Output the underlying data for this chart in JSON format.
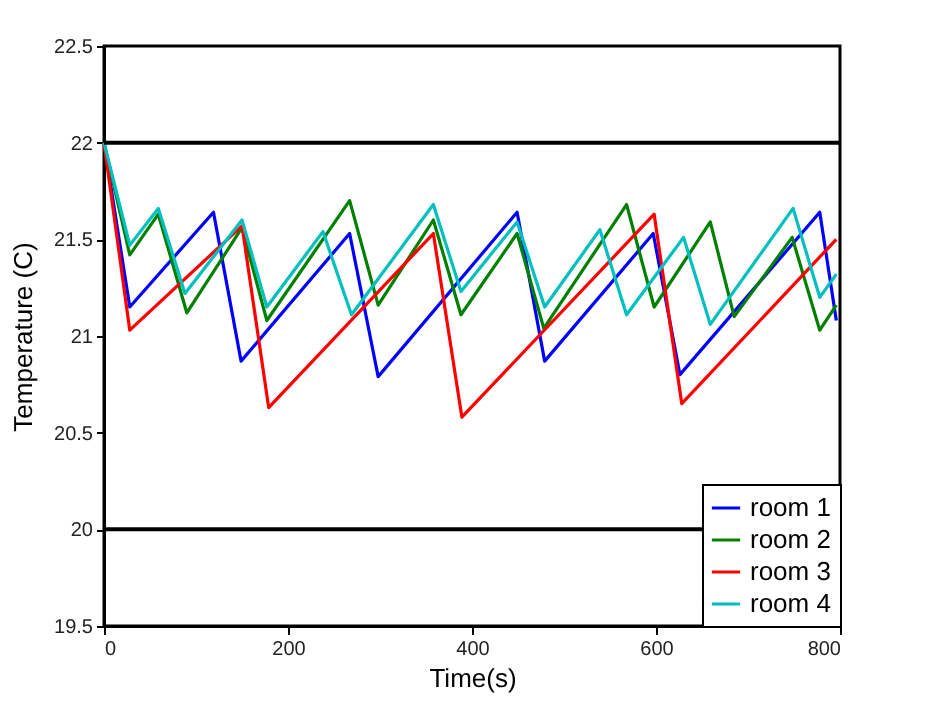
{
  "chart_data": {
    "type": "line",
    "xlabel": "Time(s)",
    "ylabel": "Temperature (C)",
    "xlim": [
      0,
      800
    ],
    "ylim": [
      19.5,
      22.5
    ],
    "xticks": [
      0,
      200,
      400,
      600,
      800
    ],
    "yticks": [
      19.5,
      20,
      20.5,
      21,
      21.5,
      22,
      22.5
    ],
    "grid": false,
    "legend": "bottom right",
    "marker": "none",
    "line_style": "solid",
    "ref_lines": [
      {
        "axis": "y",
        "value": 22,
        "color": "#000000"
      },
      {
        "axis": "y",
        "value": 20,
        "color": "#000000"
      }
    ],
    "series": [
      {
        "name": "room 1",
        "color": "#0000ff",
        "x": [
          0,
          28,
          119,
          149,
          267,
          298,
          449,
          479,
          597,
          626,
          778,
          796
        ],
        "values": [
          22,
          21.15,
          21.64,
          20.87,
          21.53,
          20.79,
          21.64,
          20.87,
          21.53,
          20.8,
          21.64,
          21.08
        ]
      },
      {
        "name": "room 2",
        "color": "#008000",
        "x": [
          0,
          28,
          59,
          90,
          150,
          177,
          267,
          298,
          358,
          388,
          449,
          478,
          568,
          598,
          659,
          685,
          748,
          778,
          796
        ],
        "values": [
          22,
          21.42,
          21.63,
          21.12,
          21.56,
          21.08,
          21.7,
          21.16,
          21.6,
          21.11,
          21.53,
          21.04,
          21.68,
          21.15,
          21.59,
          21.1,
          21.51,
          21.03,
          21.16
        ]
      },
      {
        "name": "room 3",
        "color": "#ff0000",
        "x": [
          0,
          28,
          150,
          179,
          358,
          389,
          598,
          628,
          796
        ],
        "values": [
          22,
          21.03,
          21.57,
          20.63,
          21.53,
          20.58,
          21.63,
          20.65,
          21.5
        ]
      },
      {
        "name": "room 4",
        "color": "#00bfbf",
        "x": [
          0,
          28,
          59,
          88,
          150,
          177,
          238,
          269,
          358,
          388,
          449,
          479,
          539,
          568,
          630,
          659,
          749,
          778,
          796
        ],
        "values": [
          22,
          21.47,
          21.66,
          21.22,
          21.6,
          21.15,
          21.54,
          21.11,
          21.68,
          21.23,
          21.59,
          21.15,
          21.55,
          21.11,
          21.51,
          21.06,
          21.66,
          21.2,
          21.32
        ]
      }
    ]
  }
}
